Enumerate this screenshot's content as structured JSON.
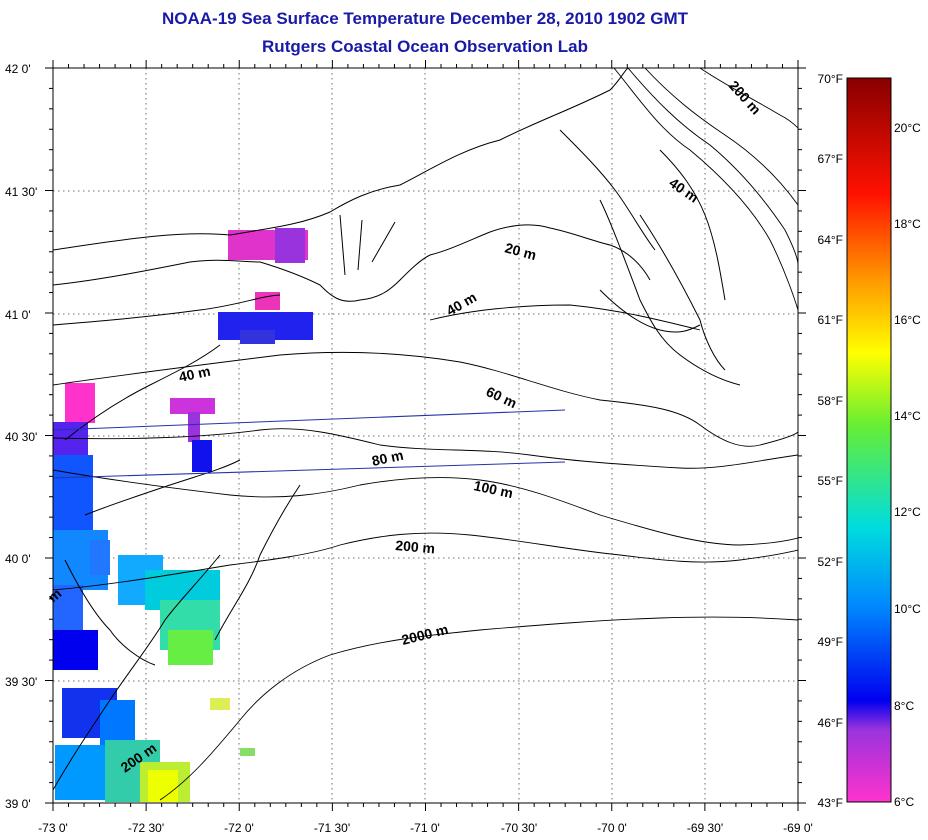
{
  "title": "NOAA-19 Sea Surface Temperature December 28, 2010 1902 GMT",
  "subtitle": "Rutgers Coastal Ocean Observation Lab",
  "map": {
    "lat_labels": [
      "42 0'",
      "41 30'",
      "41 0'",
      "40 30'",
      "40 0'",
      "39 30'",
      "39 0'"
    ],
    "lon_labels": [
      "-73 0'",
      "-72 30'",
      "-72 0'",
      "-71 30'",
      "-71 0'",
      "-70 30'",
      "-70 0'",
      "-69 30'",
      "-69 0'"
    ],
    "lat_range": [
      39.0,
      42.0
    ],
    "lon_range": [
      -73.0,
      -69.0
    ],
    "grid": true,
    "contour_labels": [
      "200 m",
      "40 m",
      "20 m",
      "40 m",
      "40 m",
      "60 m",
      "80 m",
      "100 m",
      "200 m",
      "2000 m",
      "200 m",
      "m"
    ]
  },
  "colorbar": {
    "fahrenheit_labels": [
      "70°F",
      "67°F",
      "64°F",
      "61°F",
      "58°F",
      "55°F",
      "52°F",
      "49°F",
      "46°F",
      "43°F"
    ],
    "celsius_labels": [
      "20°C",
      "18°C",
      "16°C",
      "14°C",
      "12°C",
      "10°C",
      "8°C",
      "6°C"
    ],
    "range_f": [
      43,
      70
    ],
    "range_c": [
      6,
      21.1
    ],
    "colors": [
      "#ff33cc",
      "#aa33dd",
      "#0000ee",
      "#0099ff",
      "#00dddd",
      "#44ee44",
      "#ffff00",
      "#ff9900",
      "#ff2200",
      "#990000"
    ]
  }
}
